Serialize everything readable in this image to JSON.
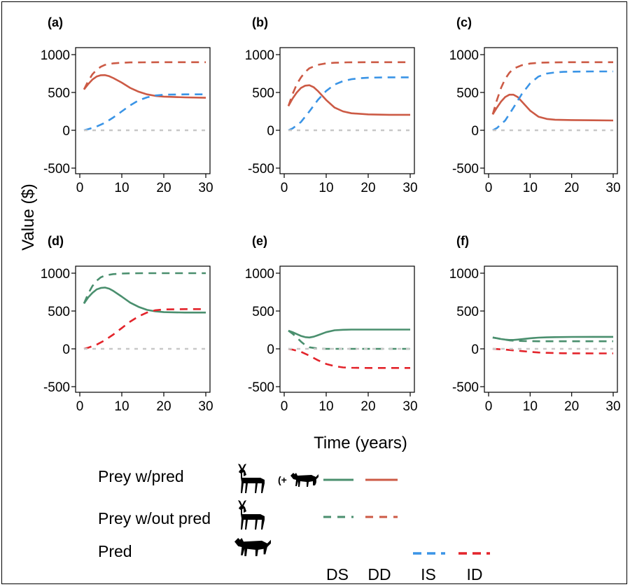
{
  "colors": {
    "DS": "#4a8f6e",
    "DD": "#cc5a45",
    "IS": "#3a94e6",
    "ID": "#e3242b",
    "zero": "#c8c8c8"
  },
  "figure": {
    "y_axis_title": "Value ($)",
    "x_axis_title": "Time (years)"
  },
  "legend": {
    "rows": [
      {
        "label": "Prey w/pred",
        "icon": "deer-with-wolf-icon",
        "suffix_open": "(+",
        "suffix_close": ")"
      },
      {
        "label": "Prey w/out pred",
        "icon": "deer-icon"
      },
      {
        "label": "Pred",
        "icon": "wolf-icon"
      }
    ],
    "columns": [
      "DS",
      "DD",
      "IS",
      "ID"
    ]
  },
  "chart_data": [
    {
      "panel": "(a)",
      "type": "line",
      "xlim": [
        0,
        30
      ],
      "ylim": [
        -500,
        1000
      ],
      "xticks": [
        0,
        10,
        20,
        30
      ],
      "yticks": [
        -500,
        0,
        500,
        1000
      ],
      "series": [
        {
          "name": "DD",
          "style": "solid",
          "x": [
            1,
            2,
            3,
            4,
            5,
            6,
            7,
            8,
            10,
            12,
            14,
            16,
            18,
            20,
            25,
            30
          ],
          "y": [
            540,
            610,
            670,
            710,
            728,
            730,
            715,
            690,
            630,
            560,
            510,
            475,
            455,
            445,
            435,
            430
          ]
        },
        {
          "name": "DD",
          "style": "dashed",
          "x": [
            1,
            2,
            3,
            4,
            5,
            6,
            8,
            10,
            12,
            15,
            20,
            30
          ],
          "y": [
            540,
            650,
            740,
            800,
            840,
            865,
            885,
            893,
            897,
            898,
            900,
            900
          ]
        },
        {
          "name": "IS",
          "style": "dashed",
          "x": [
            1,
            2,
            4,
            6,
            8,
            10,
            12,
            14,
            16,
            18,
            20,
            25,
            30
          ],
          "y": [
            0,
            15,
            50,
            100,
            170,
            250,
            330,
            395,
            435,
            460,
            470,
            475,
            475
          ]
        },
        {
          "name": "zero",
          "style": "dashed",
          "x": [
            1,
            30
          ],
          "y": [
            0,
            0
          ]
        }
      ]
    },
    {
      "panel": "(b)",
      "type": "line",
      "xlim": [
        0,
        30
      ],
      "ylim": [
        -500,
        1000
      ],
      "xticks": [
        0,
        10,
        20,
        30
      ],
      "yticks": [
        -500,
        0,
        500,
        1000
      ],
      "series": [
        {
          "name": "DD",
          "style": "solid",
          "x": [
            1,
            2,
            3,
            4,
            5,
            6,
            7,
            8,
            10,
            12,
            14,
            16,
            20,
            25,
            30
          ],
          "y": [
            320,
            420,
            500,
            560,
            590,
            595,
            570,
            520,
            400,
            300,
            250,
            225,
            210,
            205,
            205
          ]
        },
        {
          "name": "DD",
          "style": "dashed",
          "x": [
            1,
            2,
            3,
            4,
            5,
            6,
            8,
            10,
            12,
            15,
            20,
            30
          ],
          "y": [
            320,
            480,
            610,
            700,
            770,
            820,
            865,
            885,
            893,
            898,
            900,
            900
          ]
        },
        {
          "name": "IS",
          "style": "dashed",
          "x": [
            1,
            2,
            4,
            6,
            8,
            10,
            12,
            14,
            16,
            18,
            20,
            25,
            30
          ],
          "y": [
            0,
            25,
            110,
            250,
            400,
            520,
            605,
            650,
            675,
            688,
            695,
            700,
            700
          ]
        },
        {
          "name": "zero",
          "style": "dashed",
          "x": [
            1,
            30
          ],
          "y": [
            0,
            0
          ]
        }
      ]
    },
    {
      "panel": "(c)",
      "type": "line",
      "xlim": [
        0,
        30
      ],
      "ylim": [
        -500,
        1000
      ],
      "xticks": [
        0,
        10,
        20,
        30
      ],
      "yticks": [
        -500,
        0,
        500,
        1000
      ],
      "series": [
        {
          "name": "DD",
          "style": "solid",
          "x": [
            1,
            2,
            3,
            4,
            5,
            6,
            7,
            8,
            10,
            12,
            14,
            16,
            20,
            25,
            30
          ],
          "y": [
            210,
            300,
            380,
            440,
            470,
            470,
            440,
            380,
            260,
            180,
            150,
            140,
            135,
            132,
            130
          ]
        },
        {
          "name": "DD",
          "style": "dashed",
          "x": [
            1,
            2,
            3,
            4,
            5,
            6,
            8,
            10,
            12,
            15,
            20,
            30
          ],
          "y": [
            210,
            400,
            560,
            680,
            760,
            815,
            860,
            882,
            893,
            897,
            900,
            900
          ]
        },
        {
          "name": "IS",
          "style": "dashed",
          "x": [
            1,
            2,
            4,
            6,
            8,
            10,
            12,
            14,
            16,
            18,
            20,
            25,
            30
          ],
          "y": [
            0,
            30,
            130,
            300,
            480,
            620,
            710,
            750,
            765,
            772,
            775,
            778,
            778
          ]
        },
        {
          "name": "zero",
          "style": "dashed",
          "x": [
            1,
            30
          ],
          "y": [
            0,
            0
          ]
        }
      ]
    },
    {
      "panel": "(d)",
      "type": "line",
      "xlim": [
        0,
        30
      ],
      "ylim": [
        -500,
        1000
      ],
      "xticks": [
        0,
        10,
        20,
        30
      ],
      "yticks": [
        -500,
        0,
        500,
        1000
      ],
      "series": [
        {
          "name": "DS",
          "style": "solid",
          "x": [
            1,
            2,
            3,
            4,
            5,
            6,
            7,
            8,
            10,
            12,
            14,
            16,
            18,
            20,
            25,
            30
          ],
          "y": [
            600,
            680,
            740,
            785,
            805,
            810,
            795,
            765,
            690,
            610,
            555,
            515,
            495,
            485,
            480,
            480
          ]
        },
        {
          "name": "DS",
          "style": "dashed",
          "x": [
            1,
            2,
            3,
            4,
            5,
            6,
            8,
            10,
            12,
            15,
            20,
            30
          ],
          "y": [
            600,
            730,
            830,
            900,
            945,
            970,
            988,
            995,
            998,
            1000,
            1000,
            1000
          ]
        },
        {
          "name": "ID",
          "style": "dashed",
          "x": [
            1,
            2,
            4,
            6,
            8,
            10,
            12,
            14,
            16,
            18,
            20,
            25,
            30
          ],
          "y": [
            0,
            15,
            55,
            115,
            190,
            275,
            360,
            430,
            480,
            510,
            520,
            525,
            525
          ]
        },
        {
          "name": "zero",
          "style": "dashed",
          "x": [
            1,
            30
          ],
          "y": [
            0,
            0
          ]
        }
      ]
    },
    {
      "panel": "(e)",
      "type": "line",
      "xlim": [
        0,
        30
      ],
      "ylim": [
        -500,
        1000
      ],
      "xticks": [
        0,
        10,
        20,
        30
      ],
      "yticks": [
        -500,
        0,
        500,
        1000
      ],
      "series": [
        {
          "name": "DS",
          "style": "solid",
          "x": [
            1,
            2,
            3,
            4,
            5,
            6,
            7,
            8,
            10,
            12,
            14,
            16,
            20,
            25,
            30
          ],
          "y": [
            240,
            220,
            195,
            170,
            155,
            150,
            160,
            180,
            220,
            245,
            252,
            255,
            255,
            255,
            255
          ]
        },
        {
          "name": "DS",
          "style": "dashed",
          "x": [
            1,
            2,
            3,
            4,
            5,
            6,
            8,
            10,
            12,
            15,
            20,
            30
          ],
          "y": [
            240,
            200,
            150,
            95,
            50,
            20,
            5,
            0,
            0,
            0,
            0,
            0
          ]
        },
        {
          "name": "ID",
          "style": "dashed",
          "x": [
            1,
            2,
            4,
            6,
            8,
            10,
            12,
            14,
            16,
            18,
            20,
            25,
            30
          ],
          "y": [
            0,
            -10,
            -40,
            -90,
            -150,
            -200,
            -230,
            -245,
            -250,
            -252,
            -253,
            -253,
            -253
          ]
        },
        {
          "name": "zero",
          "style": "dashed",
          "x": [
            1,
            30
          ],
          "y": [
            0,
            0
          ]
        }
      ]
    },
    {
      "panel": "(f)",
      "type": "line",
      "xlim": [
        0,
        30
      ],
      "ylim": [
        -500,
        1000
      ],
      "xticks": [
        0,
        10,
        20,
        30
      ],
      "yticks": [
        -500,
        0,
        500,
        1000
      ],
      "series": [
        {
          "name": "DS",
          "style": "solid",
          "x": [
            1,
            2,
            3,
            4,
            5,
            6,
            7,
            8,
            10,
            12,
            14,
            16,
            20,
            25,
            30
          ],
          "y": [
            150,
            140,
            130,
            122,
            118,
            118,
            122,
            128,
            140,
            148,
            152,
            155,
            157,
            158,
            158
          ]
        },
        {
          "name": "DS",
          "style": "dashed",
          "x": [
            1,
            2,
            3,
            4,
            5,
            6,
            8,
            10,
            12,
            15,
            20,
            30
          ],
          "y": [
            150,
            140,
            130,
            120,
            112,
            108,
            104,
            102,
            100,
            100,
            100,
            100
          ]
        },
        {
          "name": "ID",
          "style": "dashed",
          "x": [
            1,
            2,
            4,
            6,
            8,
            10,
            12,
            14,
            16,
            18,
            20,
            25,
            30
          ],
          "y": [
            0,
            -3,
            -10,
            -20,
            -30,
            -40,
            -48,
            -53,
            -56,
            -58,
            -59,
            -60,
            -60
          ]
        },
        {
          "name": "zero",
          "style": "dashed",
          "x": [
            1,
            30
          ],
          "y": [
            0,
            0
          ]
        }
      ]
    }
  ]
}
